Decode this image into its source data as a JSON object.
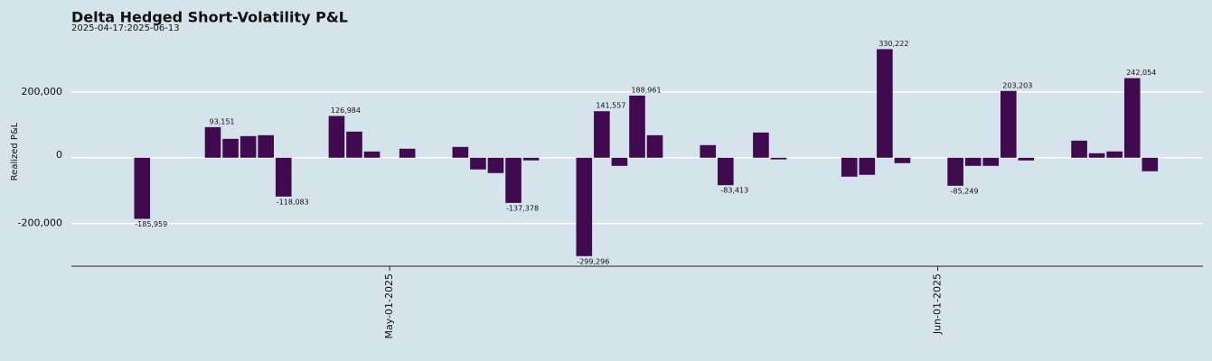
{
  "chart_data": {
    "type": "bar",
    "title": "Delta Hedged Short-Volatility P&L",
    "subtitle": "2025-04-17:2025-06-13",
    "y_label": "Realized P&L",
    "x": [
      "2025-04-17",
      "2025-04-21",
      "2025-04-22",
      "2025-04-23",
      "2025-04-24",
      "2025-04-25",
      "2025-04-28",
      "2025-04-29",
      "2025-04-30",
      "2025-05-02",
      "2025-05-05",
      "2025-05-06",
      "2025-05-07",
      "2025-05-08",
      "2025-05-09",
      "2025-05-12",
      "2025-05-13",
      "2025-05-14",
      "2025-05-15",
      "2025-05-16",
      "2025-05-19",
      "2025-05-20",
      "2025-05-22",
      "2025-05-23",
      "2025-05-27",
      "2025-05-28",
      "2025-05-29",
      "2025-05-30",
      "2025-06-02",
      "2025-06-03",
      "2025-06-04",
      "2025-06-05",
      "2025-06-06",
      "2025-06-09",
      "2025-06-10",
      "2025-06-11",
      "2025-06-12",
      "2025-06-13"
    ],
    "values": [
      -185959,
      93151,
      57500,
      65800,
      68500,
      -118083,
      126984,
      79500,
      19000,
      27400,
      32900,
      -35600,
      -46600,
      -137378,
      -8000,
      -299296,
      141557,
      -24700,
      188961,
      68500,
      38400,
      -83413,
      76700,
      -5000,
      -57500,
      -52000,
      330222,
      -16400,
      -85249,
      -24700,
      -24700,
      203203,
      -8200,
      52000,
      13700,
      19200,
      242054,
      -41100
    ],
    "value_labels": [
      "-185,959",
      "93,151",
      null,
      null,
      null,
      "-118,083",
      "126,984",
      null,
      null,
      null,
      null,
      null,
      null,
      "-137,378",
      null,
      "-299,296",
      "141,557",
      null,
      "188,961",
      null,
      null,
      "-83,413",
      null,
      null,
      null,
      null,
      "330,222",
      null,
      "-85,249",
      null,
      null,
      "203,203",
      null,
      null,
      null,
      null,
      "242,054",
      null
    ],
    "color": "#3f0a4e",
    "xlim": [
      "2025-04-13",
      "2025-06-16"
    ],
    "xticks": [
      {
        "value": "2025-05-01",
        "label": "May-01-2025"
      },
      {
        "value": "2025-06-01",
        "label": "Jun-01-2025"
      }
    ],
    "ylim": [
      -330000,
      370000
    ],
    "yticks": [
      {
        "value": -200000,
        "label": "-200,000"
      },
      {
        "value": 0,
        "label": "0"
      },
      {
        "value": 200000,
        "label": "200,000"
      }
    ],
    "grid": true
  }
}
